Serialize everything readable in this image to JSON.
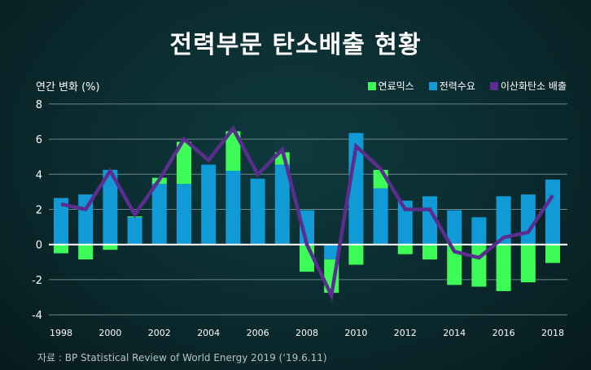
{
  "title": "전력부문 탄소배출 현황",
  "source": "자료 : BP Statistical Review of World Energy 2019 (‘19.6.11)",
  "chart_data": {
    "type": "bar",
    "ylabel": "연간 변화 (%)",
    "ylim": [
      -4,
      8
    ],
    "yticks": [
      -4,
      -2,
      0,
      2,
      4,
      6,
      8
    ],
    "grid": true,
    "legend_placement": "top-right",
    "categories": [
      "1998",
      "1999",
      "2000",
      "2001",
      "2002",
      "2003",
      "2004",
      "2005",
      "2006",
      "2007",
      "2008",
      "2009",
      "2010",
      "2011",
      "2012",
      "2013",
      "2014",
      "2015",
      "2016",
      "2017",
      "2018"
    ],
    "xtick_labels": [
      "1998",
      "2000",
      "2002",
      "2004",
      "2006",
      "2008",
      "2010",
      "2012",
      "2014",
      "2016",
      "2018"
    ],
    "series": [
      {
        "name": "연료믹스",
        "type": "bar",
        "color": "#3dfc58",
        "values": [
          -0.5,
          -0.85,
          -0.3,
          0.05,
          0.35,
          2.4,
          0,
          2.25,
          0,
          0.7,
          -1.55,
          -1.9,
          -1.15,
          1.05,
          -0.55,
          -0.85,
          -2.3,
          -2.4,
          -2.65,
          -2.15,
          -1.05
        ]
      },
      {
        "name": "전력수요",
        "type": "bar",
        "color": "#109bd6",
        "values": [
          2.65,
          2.85,
          4.25,
          1.55,
          3.45,
          3.45,
          4.55,
          4.2,
          3.75,
          4.55,
          1.95,
          -0.85,
          6.35,
          3.2,
          2.5,
          2.75,
          1.95,
          1.55,
          2.75,
          2.85,
          3.7
        ]
      },
      {
        "name": "이산화탄소 배출",
        "type": "line",
        "color": "#5b2d8e",
        "values": [
          2.3,
          2.0,
          4.2,
          1.7,
          3.7,
          6.0,
          4.8,
          6.6,
          4.0,
          5.4,
          0.0,
          -2.9,
          5.6,
          4.3,
          2.0,
          2.0,
          -0.4,
          -0.75,
          0.4,
          0.7,
          2.8
        ]
      }
    ]
  }
}
